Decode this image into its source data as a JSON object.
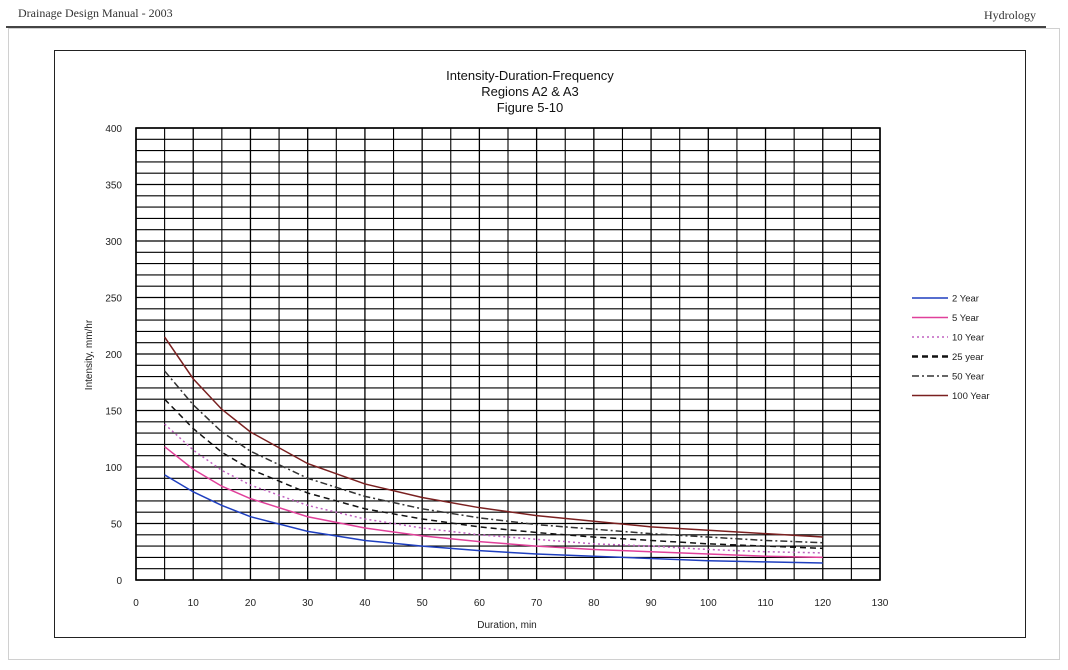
{
  "page": {
    "header_left": "Drainage Design Manual - 2003",
    "header_right": "Hydrology"
  },
  "chart_data": {
    "type": "line",
    "title": "Intensity-Duration-Frequency",
    "subtitle": "Regions A2 & A3",
    "figure_label": "Figure 5-10",
    "xlabel": "Duration, min",
    "ylabel": "Intensity, mm/hr",
    "xlim": [
      0,
      130
    ],
    "ylim": [
      0,
      400
    ],
    "x_ticks": [
      0,
      10,
      20,
      30,
      40,
      50,
      60,
      70,
      80,
      90,
      100,
      110,
      120,
      130
    ],
    "y_ticks": [
      0,
      50,
      100,
      150,
      200,
      250,
      300,
      350,
      400
    ],
    "grid": true,
    "legend_position": "right",
    "x": [
      5,
      10,
      15,
      20,
      30,
      40,
      50,
      60,
      70,
      80,
      90,
      100,
      110,
      120
    ],
    "series": [
      {
        "name": "2 Year",
        "color": "#1f3fbf",
        "dash": "solid",
        "values": [
          93,
          78,
          66,
          56,
          43,
          35,
          30,
          26,
          23,
          21,
          19,
          17,
          16,
          15
        ]
      },
      {
        "name": "5 Year",
        "color": "#e0409a",
        "dash": "solid",
        "values": [
          118,
          98,
          83,
          72,
          56,
          46,
          39,
          34,
          30,
          27,
          25,
          23,
          21,
          20
        ]
      },
      {
        "name": "10 Year",
        "color": "#c060c0",
        "dash": "dotted",
        "values": [
          138,
          115,
          97,
          84,
          66,
          54,
          46,
          40,
          36,
          32,
          30,
          27,
          25,
          24
        ]
      },
      {
        "name": "25 year",
        "color": "#111111",
        "dash": "dashed",
        "values": [
          160,
          134,
          113,
          98,
          77,
          63,
          54,
          47,
          42,
          38,
          35,
          32,
          30,
          28
        ]
      },
      {
        "name": "50 Year",
        "color": "#333333",
        "dash": "dashdot",
        "values": [
          185,
          155,
          131,
          114,
          90,
          74,
          63,
          55,
          49,
          45,
          41,
          38,
          35,
          33
        ]
      },
      {
        "name": "100 Year",
        "color": "#7a2020",
        "dash": "solid",
        "values": [
          215,
          178,
          151,
          131,
          103,
          85,
          73,
          64,
          57,
          52,
          47,
          44,
          41,
          38
        ]
      }
    ]
  }
}
